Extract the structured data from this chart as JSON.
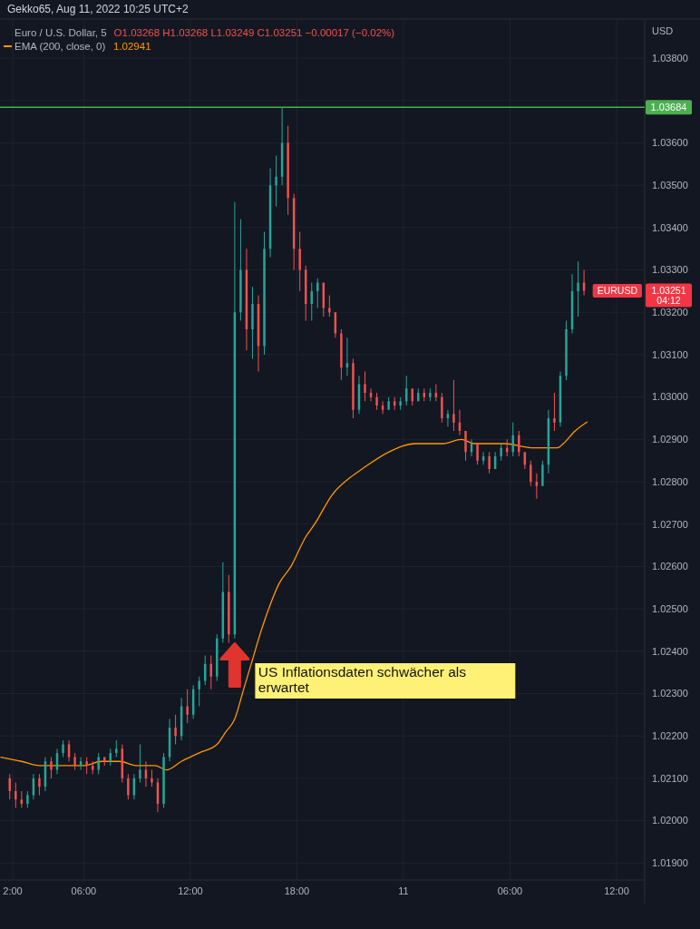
{
  "chart_data": {
    "type": "candlestick",
    "title": "Euro / U.S. Dollar, 5",
    "subtitle": "O1.03268 H1.03268 L1.03249 C1.03251 −0.00017 (−0.02%)",
    "ylabel": "USD",
    "annotations": [
      "Gekko65, Aug 11, 2022 10:25 UTC+2",
      "1.02941",
      "EURUSD",
      "1.03251",
      "04:12",
      {
        "text": "US Inflationsdaten schwächer als erwartet",
        "x": "2022-08-10T14:30",
        "y": 1.0242
      }
    ],
    "xlim": [
      "2022-08-10T01:17",
      "2022-08-11T13:35"
    ],
    "xticks": [
      {
        "value": "2022-08-10T02:00",
        "label": "2:00"
      },
      {
        "value": "2022-08-10T06:00",
        "label": "06:00"
      },
      {
        "value": "2022-08-10T12:00",
        "label": "12:00"
      },
      {
        "value": "2022-08-10T18:00",
        "label": "18:00"
      },
      {
        "value": "2022-08-11T00:00",
        "label": "11"
      },
      {
        "value": "2022-08-11T06:00",
        "label": "06:00"
      },
      {
        "value": "2022-08-11T12:00",
        "label": "12:00"
      }
    ],
    "ylim": [
      1.0186,
      1.0389
    ],
    "yticks": [
      {
        "value": 1.019,
        "label": "1.01900"
      },
      {
        "value": 1.02,
        "label": "1.02000"
      },
      {
        "value": 1.021,
        "label": "1.02100"
      },
      {
        "value": 1.022,
        "label": "1.02200"
      },
      {
        "value": 1.023,
        "label": "1.02300"
      },
      {
        "value": 1.024,
        "label": "1.02400"
      },
      {
        "value": 1.025,
        "label": "1.02500"
      },
      {
        "value": 1.026,
        "label": "1.02600"
      },
      {
        "value": 1.027,
        "label": "1.02700"
      },
      {
        "value": 1.028,
        "label": "1.02800"
      },
      {
        "value": 1.029,
        "label": "1.02900"
      },
      {
        "value": 1.03,
        "label": "1.03000"
      },
      {
        "value": 1.031,
        "label": "1.03100"
      },
      {
        "value": 1.032,
        "label": "1.03200"
      },
      {
        "value": 1.033,
        "label": "1.03300"
      },
      {
        "value": 1.034,
        "label": "1.03400"
      },
      {
        "value": 1.035,
        "label": "1.03500"
      },
      {
        "value": 1.036,
        "label": "1.03600"
      },
      {
        "value": 1.037,
        "label": null
      },
      {
        "value": 1.038,
        "label": "1.03800"
      }
    ],
    "grid": true,
    "legend": "top left",
    "ref_lines": [
      {
        "axis": "y",
        "value": 1.03684,
        "label": "1.03684",
        "color": "#4caf50"
      }
    ],
    "x": [
      "2022-08-10T01:50",
      "2022-08-10T02:10",
      "2022-08-10T02:30",
      "2022-08-10T02:50",
      "2022-08-10T03:10",
      "2022-08-10T03:30",
      "2022-08-10T03:50",
      "2022-08-10T04:10",
      "2022-08-10T04:30",
      "2022-08-10T04:50",
      "2022-08-10T05:10",
      "2022-08-10T05:30",
      "2022-08-10T05:50",
      "2022-08-10T06:10",
      "2022-08-10T06:30",
      "2022-08-10T06:50",
      "2022-08-10T07:10",
      "2022-08-10T07:30",
      "2022-08-10T07:50",
      "2022-08-10T08:10",
      "2022-08-10T08:30",
      "2022-08-10T08:50",
      "2022-08-10T09:10",
      "2022-08-10T09:30",
      "2022-08-10T09:50",
      "2022-08-10T10:10",
      "2022-08-10T10:30",
      "2022-08-10T10:50",
      "2022-08-10T11:10",
      "2022-08-10T11:30",
      "2022-08-10T11:50",
      "2022-08-10T12:10",
      "2022-08-10T12:30",
      "2022-08-10T12:50",
      "2022-08-10T13:10",
      "2022-08-10T13:30",
      "2022-08-10T13:50",
      "2022-08-10T14:10",
      "2022-08-10T14:30",
      "2022-08-10T14:50",
      "2022-08-10T15:10",
      "2022-08-10T15:30",
      "2022-08-10T15:50",
      "2022-08-10T16:10",
      "2022-08-10T16:30",
      "2022-08-10T16:50",
      "2022-08-10T17:10",
      "2022-08-10T17:30",
      "2022-08-10T17:50",
      "2022-08-10T18:10",
      "2022-08-10T18:30",
      "2022-08-10T18:50",
      "2022-08-10T19:10",
      "2022-08-10T19:30",
      "2022-08-10T19:50",
      "2022-08-10T20:10",
      "2022-08-10T20:30",
      "2022-08-10T20:50",
      "2022-08-10T21:10",
      "2022-08-10T21:30",
      "2022-08-10T21:50",
      "2022-08-10T22:10",
      "2022-08-10T22:30",
      "2022-08-10T22:50",
      "2022-08-10T23:10",
      "2022-08-10T23:30",
      "2022-08-10T23:50",
      "2022-08-11T00:10",
      "2022-08-11T00:30",
      "2022-08-11T00:50",
      "2022-08-11T01:10",
      "2022-08-11T01:30",
      "2022-08-11T01:50",
      "2022-08-11T02:10",
      "2022-08-11T02:30",
      "2022-08-11T02:50",
      "2022-08-11T03:10",
      "2022-08-11T03:30",
      "2022-08-11T03:50",
      "2022-08-11T04:10",
      "2022-08-11T04:30",
      "2022-08-11T04:50",
      "2022-08-11T05:10",
      "2022-08-11T05:30",
      "2022-08-11T05:50",
      "2022-08-11T06:10",
      "2022-08-11T06:30",
      "2022-08-11T06:50",
      "2022-08-11T07:10",
      "2022-08-11T07:30",
      "2022-08-11T07:50",
      "2022-08-11T08:10",
      "2022-08-11T08:30",
      "2022-08-11T08:50",
      "2022-08-11T09:10",
      "2022-08-11T09:30",
      "2022-08-11T09:50",
      "2022-08-11T10:10"
    ],
    "ohlc": [
      [
        1.021,
        1.0211,
        1.0205,
        1.0207
      ],
      [
        1.0207,
        1.0209,
        1.0203,
        1.0205
      ],
      [
        1.0205,
        1.0207,
        1.0203,
        1.0204
      ],
      [
        1.0204,
        1.0207,
        1.0203,
        1.0206
      ],
      [
        1.0206,
        1.0211,
        1.0205,
        1.021
      ],
      [
        1.021,
        1.0211,
        1.0206,
        1.0208
      ],
      [
        1.0208,
        1.0215,
        1.0207,
        1.0214
      ],
      [
        1.0214,
        1.0215,
        1.021,
        1.0212
      ],
      [
        1.0212,
        1.0217,
        1.0211,
        1.0216
      ],
      [
        1.0216,
        1.0219,
        1.0215,
        1.0218
      ],
      [
        1.0218,
        1.0219,
        1.0214,
        1.0215
      ],
      [
        1.0215,
        1.0216,
        1.0212,
        1.0213
      ],
      [
        1.0213,
        1.0215,
        1.0212,
        1.0214
      ],
      [
        1.0214,
        1.0215,
        1.0211,
        1.0213
      ],
      [
        1.0213,
        1.0214,
        1.0211,
        1.0212
      ],
      [
        1.0212,
        1.0216,
        1.0211,
        1.0215
      ],
      [
        1.0215,
        1.0215,
        1.0213,
        1.0214
      ],
      [
        1.0214,
        1.0217,
        1.0213,
        1.0216
      ],
      [
        1.0216,
        1.0219,
        1.0215,
        1.0217
      ],
      [
        1.0217,
        1.0218,
        1.0209,
        1.021
      ],
      [
        1.021,
        1.0211,
        1.0205,
        1.0206
      ],
      [
        1.0206,
        1.0211,
        1.0205,
        1.021
      ],
      [
        1.021,
        1.0218,
        1.0209,
        1.0212
      ],
      [
        1.0212,
        1.0214,
        1.0208,
        1.021
      ],
      [
        1.021,
        1.0212,
        1.0208,
        1.0209
      ],
      [
        1.0209,
        1.021,
        1.0202,
        1.0204
      ],
      [
        1.0204,
        1.0216,
        1.0203,
        1.0215
      ],
      [
        1.0215,
        1.0224,
        1.0214,
        1.0222
      ],
      [
        1.0222,
        1.0225,
        1.0218,
        1.022
      ],
      [
        1.022,
        1.0229,
        1.0219,
        1.0227
      ],
      [
        1.0227,
        1.0231,
        1.0223,
        1.0225
      ],
      [
        1.0225,
        1.0232,
        1.0224,
        1.0231
      ],
      [
        1.0231,
        1.0234,
        1.0227,
        1.0233
      ],
      [
        1.0233,
        1.0239,
        1.0232,
        1.0237
      ],
      [
        1.0237,
        1.0239,
        1.0231,
        1.0234
      ],
      [
        1.0234,
        1.0244,
        1.0233,
        1.0243
      ],
      [
        1.0243,
        1.0261,
        1.0242,
        1.0254
      ],
      [
        1.0254,
        1.0258,
        1.0242,
        1.0244
      ],
      [
        1.0244,
        1.0346,
        1.0243,
        1.032
      ],
      [
        1.032,
        1.0342,
        1.0318,
        1.033
      ],
      [
        1.033,
        1.0335,
        1.0311,
        1.0316
      ],
      [
        1.0316,
        1.0326,
        1.0309,
        1.0322
      ],
      [
        1.0322,
        1.0324,
        1.0306,
        1.0312
      ],
      [
        1.0312,
        1.0339,
        1.031,
        1.0335
      ],
      [
        1.0335,
        1.0354,
        1.0333,
        1.035
      ],
      [
        1.035,
        1.0357,
        1.0345,
        1.0352
      ],
      [
        1.0352,
        1.03684,
        1.035,
        1.036
      ],
      [
        1.036,
        1.0364,
        1.0343,
        1.0347
      ],
      [
        1.0347,
        1.0348,
        1.033,
        1.0335
      ],
      [
        1.0335,
        1.0339,
        1.0325,
        1.033
      ],
      [
        1.033,
        1.0331,
        1.0318,
        1.0322
      ],
      [
        1.0322,
        1.0327,
        1.0318,
        1.0325
      ],
      [
        1.0325,
        1.0328,
        1.0321,
        1.0327
      ],
      [
        1.0327,
        1.0327,
        1.0319,
        1.0321
      ],
      [
        1.0321,
        1.0324,
        1.0319,
        1.032
      ],
      [
        1.032,
        1.032,
        1.0314,
        1.0315
      ],
      [
        1.0315,
        1.0316,
        1.0304,
        1.0307
      ],
      [
        1.0307,
        1.0314,
        1.0305,
        1.0308
      ],
      [
        1.0308,
        1.0309,
        1.0295,
        1.0297
      ],
      [
        1.0297,
        1.0305,
        1.0296,
        1.0303
      ],
      [
        1.0303,
        1.0306,
        1.0299,
        1.0301
      ],
      [
        1.0301,
        1.0302,
        1.0299,
        1.03
      ],
      [
        1.03,
        1.0301,
        1.0297,
        1.0298
      ],
      [
        1.0298,
        1.0299,
        1.0296,
        1.0297
      ],
      [
        1.0297,
        1.03,
        1.0297,
        1.0299
      ],
      [
        1.0299,
        1.03,
        1.0297,
        1.0298
      ],
      [
        1.0298,
        1.03,
        1.0297,
        1.0299
      ],
      [
        1.0299,
        1.0305,
        1.0298,
        1.0302
      ],
      [
        1.0302,
        1.0302,
        1.0298,
        1.0299
      ],
      [
        1.0299,
        1.0302,
        1.0299,
        1.0301
      ],
      [
        1.0301,
        1.0302,
        1.0299,
        1.03
      ],
      [
        1.03,
        1.0302,
        1.0299,
        1.0301
      ],
      [
        1.0301,
        1.0303,
        1.0299,
        1.03
      ],
      [
        1.03,
        1.0301,
        1.0294,
        1.0295
      ],
      [
        1.0295,
        1.0297,
        1.0293,
        1.0296
      ],
      [
        1.0296,
        1.0304,
        1.0292,
        1.0294
      ],
      [
        1.0294,
        1.0297,
        1.0291,
        1.0292
      ],
      [
        1.0292,
        1.0292,
        1.0285,
        1.0287
      ],
      [
        1.0287,
        1.029,
        1.0286,
        1.0289
      ],
      [
        1.0289,
        1.0289,
        1.0284,
        1.0285
      ],
      [
        1.0285,
        1.0287,
        1.0284,
        1.0286
      ],
      [
        1.0286,
        1.0287,
        1.0282,
        1.0283
      ],
      [
        1.0283,
        1.0287,
        1.0283,
        1.0286
      ],
      [
        1.0286,
        1.0289,
        1.0285,
        1.0288
      ],
      [
        1.0288,
        1.029,
        1.0286,
        1.0287
      ],
      [
        1.0287,
        1.0294,
        1.0286,
        1.0291
      ],
      [
        1.0291,
        1.0292,
        1.0286,
        1.0287
      ],
      [
        1.0287,
        1.0287,
        1.0283,
        1.0284
      ],
      [
        1.0284,
        1.0285,
        1.0279,
        1.028
      ],
      [
        1.028,
        1.0282,
        1.0276,
        1.0279
      ],
      [
        1.0279,
        1.0285,
        1.0279,
        1.0284
      ],
      [
        1.0284,
        1.0297,
        1.0282,
        1.0295
      ],
      [
        1.0295,
        1.0301,
        1.0292,
        1.0294
      ],
      [
        1.0294,
        1.0306,
        1.0293,
        1.0305
      ],
      [
        1.0305,
        1.0318,
        1.0304,
        1.0316
      ],
      [
        1.0316,
        1.0329,
        1.0315,
        1.0325
      ],
      [
        1.0325,
        1.0332,
        1.0319,
        1.0327
      ],
      [
        1.0327,
        1.033,
        1.0324,
        1.03251
      ]
    ],
    "colors": [
      "#ef5350",
      "#ef5350",
      "#ef5350",
      "#26a69a",
      "#26a69a",
      "#ef5350",
      "#26a69a",
      "#ef5350",
      "#26a69a",
      "#26a69a",
      "#ef5350",
      "#ef5350",
      "#26a69a",
      "#ef5350",
      "#ef5350",
      "#26a69a",
      "#ef5350",
      "#26a69a",
      "#26a69a",
      "#ef5350",
      "#ef5350",
      "#26a69a",
      "#26a69a",
      "#ef5350",
      "#ef5350",
      "#ef5350",
      "#26a69a",
      "#26a69a",
      "#ef5350",
      "#26a69a",
      "#ef5350",
      "#26a69a",
      "#26a69a",
      "#26a69a",
      "#ef5350",
      "#26a69a",
      "#26a69a",
      "#ef5350",
      "#26a69a",
      "#26a69a",
      "#ef5350",
      "#26a69a",
      "#ef5350",
      "#26a69a",
      "#26a69a",
      "#26a69a",
      "#26a69a",
      "#ef5350",
      "#ef5350",
      "#ef5350",
      "#ef5350",
      "#26a69a",
      "#26a69a",
      "#ef5350",
      "#ef5350",
      "#ef5350",
      "#ef5350",
      "#26a69a",
      "#ef5350",
      "#26a69a",
      "#ef5350",
      "#ef5350",
      "#ef5350",
      "#ef5350",
      "#26a69a",
      "#ef5350",
      "#26a69a",
      "#26a69a",
      "#ef5350",
      "#26a69a",
      "#ef5350",
      "#26a69a",
      "#ef5350",
      "#ef5350",
      "#26a69a",
      "#ef5350",
      "#ef5350",
      "#ef5350",
      "#26a69a",
      "#ef5350",
      "#26a69a",
      "#ef5350",
      "#26a69a",
      "#26a69a",
      "#ef5350",
      "#26a69a",
      "#ef5350",
      "#ef5350",
      "#ef5350",
      "#ef5350",
      "#26a69a",
      "#26a69a",
      "#ef5350",
      "#26a69a",
      "#26a69a",
      "#26a69a",
      "#26a69a",
      "#ef5350"
    ],
    "series": [
      {
        "type": "line",
        "name": "EMA (200, close, 0)",
        "color": "#ff9800",
        "x": [
          "2022-08-10T01:20",
          "2022-08-10T02:30",
          "2022-08-10T03:30",
          "2022-08-10T04:30",
          "2022-08-10T06:00",
          "2022-08-10T07:00",
          "2022-08-10T08:00",
          "2022-08-10T09:00",
          "2022-08-10T10:00",
          "2022-08-10T10:40",
          "2022-08-10T11:30",
          "2022-08-10T12:30",
          "2022-08-10T13:30",
          "2022-08-10T14:00",
          "2022-08-10T14:30",
          "2022-08-10T15:00",
          "2022-08-10T15:30",
          "2022-08-10T16:00",
          "2022-08-10T16:30",
          "2022-08-10T17:00",
          "2022-08-10T17:40",
          "2022-08-10T18:30",
          "2022-08-10T19:00",
          "2022-08-10T20:00",
          "2022-08-10T21:00",
          "2022-08-10T21:40",
          "2022-08-10T23:10",
          "2022-08-11T00:40",
          "2022-08-11T02:15",
          "2022-08-11T03:15",
          "2022-08-11T04:00",
          "2022-08-11T05:40",
          "2022-08-11T07:20",
          "2022-08-11T08:00",
          "2022-08-11T08:40",
          "2022-08-11T09:00",
          "2022-08-11T09:40",
          "2022-08-11T10:20"
        ],
        "values": [
          1.0215,
          1.0214,
          1.0213,
          1.0213,
          1.0213,
          1.0214,
          1.0214,
          1.0213,
          1.0213,
          1.0212,
          1.0214,
          1.0216,
          1.0218,
          1.0221,
          1.0224,
          1.0231,
          1.0238,
          1.0245,
          1.0251,
          1.0256,
          1.026,
          1.0267,
          1.027,
          1.0277,
          1.0281,
          1.0283,
          1.0287,
          1.0289,
          1.0289,
          1.029,
          1.0289,
          1.0289,
          1.0288,
          1.0288,
          1.0288,
          1.0289,
          1.0292,
          1.02941
        ]
      }
    ]
  }
}
